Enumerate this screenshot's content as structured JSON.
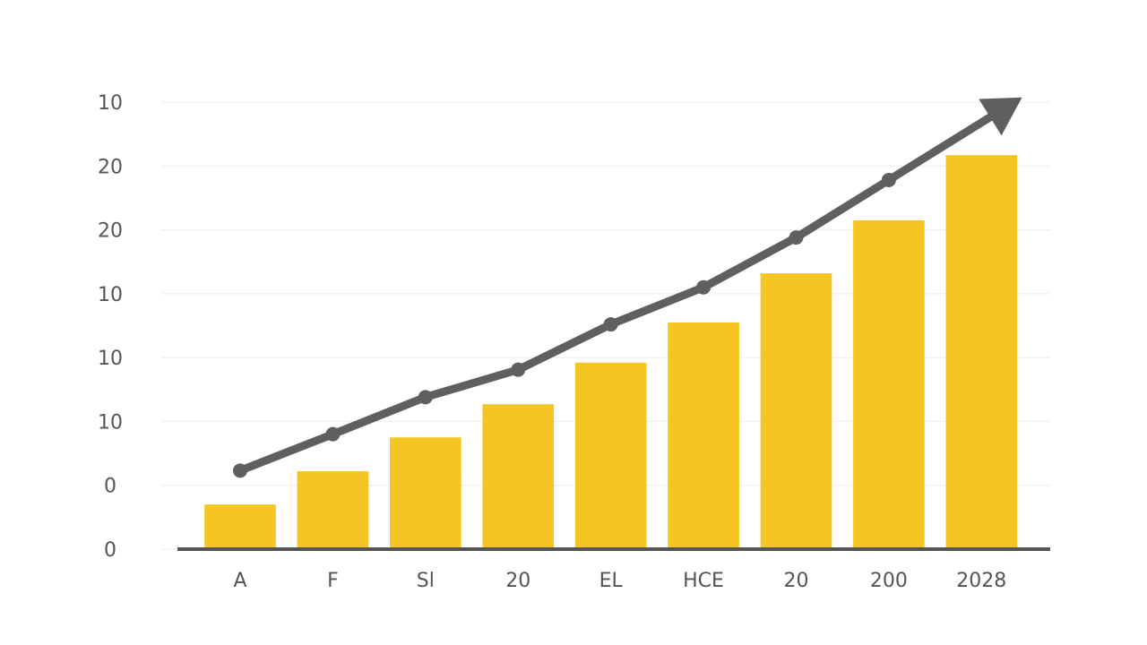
{
  "chart_data": {
    "type": "bar",
    "categories": [
      "A",
      "F",
      "Sl",
      "20",
      "EL",
      "HCE",
      "20",
      "200",
      "2028"
    ],
    "series": [
      {
        "type": "bar",
        "color": "#f5c623",
        "values": [
          0.7,
          1.22,
          1.75,
          2.27,
          2.92,
          3.55,
          4.32,
          5.15,
          6.17
        ]
      },
      {
        "type": "line",
        "color": "#5f5f5f",
        "values": [
          1.23,
          1.8,
          2.38,
          2.81,
          3.52,
          4.1,
          4.88,
          5.78,
          null
        ]
      }
    ],
    "ylim": [
      0,
      7
    ],
    "yticks": [
      0,
      {
        "value": 1,
        "label": "0"
      },
      {
        "value": 2,
        "label": "10"
      },
      {
        "value": 3,
        "label": "10"
      },
      {
        "value": 4,
        "label": "10"
      },
      {
        "value": 5,
        "label": "20"
      },
      {
        "value": 6,
        "label": "20"
      },
      {
        "value": 7,
        "label": "10"
      }
    ],
    "grid": true
  }
}
